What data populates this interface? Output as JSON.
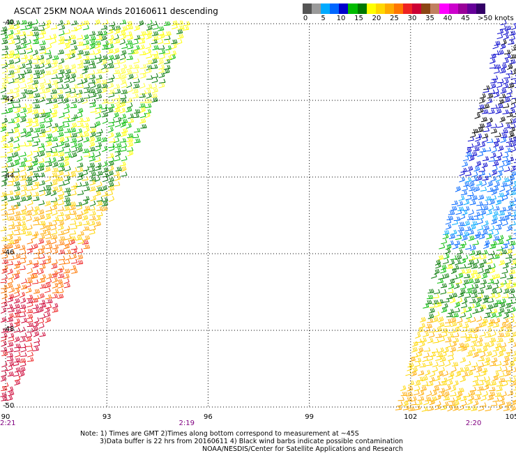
{
  "title": "ASCAT 25KM NOAA Winds 20160611 descending",
  "colorbar": {
    "colors": [
      "#555555",
      "#9a9a9a",
      "#00aaff",
      "#0066ff",
      "#0000cc",
      "#00bb00",
      "#007700",
      "#ffff00",
      "#ffd700",
      "#ffaa00",
      "#ff7700",
      "#ee2222",
      "#cc0033",
      "#8b4513",
      "#c08060",
      "#ff00ff",
      "#cc00cc",
      "#990099",
      "#660099",
      "#330066"
    ],
    "labels": [
      "0",
      "5",
      "10",
      "15",
      "20",
      "25",
      "30",
      "35",
      "40",
      "45",
      ">50 knots"
    ]
  },
  "map": {
    "lon_range": [
      90,
      105
    ],
    "lat_range": [
      -40,
      -50
    ],
    "lon_ticks": [
      "90",
      "93",
      "96",
      "99",
      "102",
      "105"
    ],
    "lat_ticks": [
      "-40",
      "-42",
      "-44",
      "-46",
      "-48",
      "-50"
    ],
    "pass_times": [
      {
        "label": "2:21",
        "lon": 90
      },
      {
        "label": "2:19",
        "lon": 95.3
      },
      {
        "label": "2:20",
        "lon": 103.8
      }
    ]
  },
  "notes": {
    "line1": "Note: 1) Times are GMT 2)Times along bottom correspond to measurement at ~45S",
    "line2": "3)Data buffer is 22 hrs from 20160611 4) Black wind barbs indicate possible contamination",
    "line3": "NOAA/NESDIS/Center for Satellite Applications and Research"
  }
}
